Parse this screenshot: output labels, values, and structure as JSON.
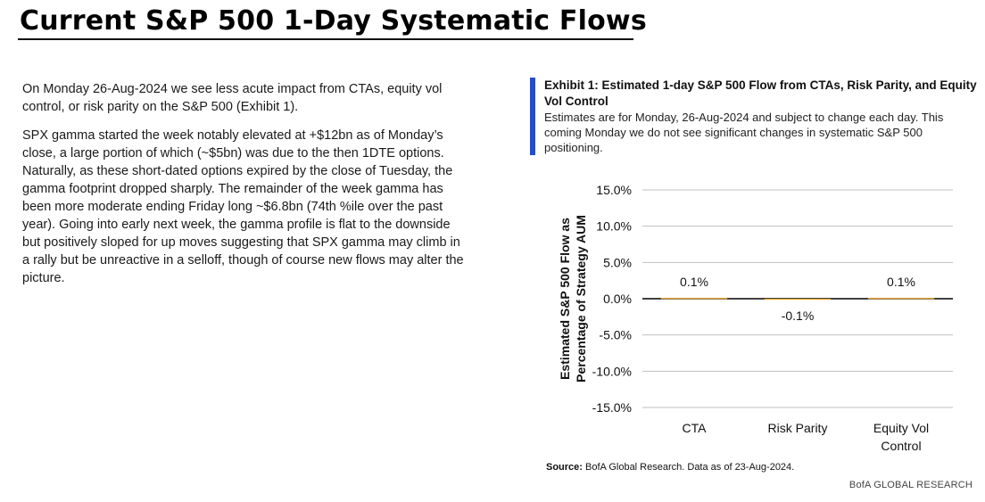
{
  "page": {
    "title": "Current S&P 500 1-Day Systematic Flows",
    "paragraphs": [
      "On Monday 26-Aug-2024 we see less acute impact from CTAs, equity vol control, or risk parity on the S&P 500 (Exhibit 1).",
      "SPX gamma started the week notably elevated at +$12bn as of Monday’s close, a large portion of which (~$5bn) was due to the then 1DTE options.  Naturally, as these short-dated options expired by the close of Tuesday, the gamma footprint dropped sharply.  The remainder of the week gamma has been more moderate ending Friday long ~$6.8bn (74th %ile over the past year).  Going into early next week, the gamma profile is flat to the downside but positively sloped for up moves suggesting that SPX gamma may climb in a rally but be unreactive in a selloff, though of course new flows may alter the picture."
    ]
  },
  "exhibit": {
    "title": "Exhibit 1: Estimated 1-day S&P 500 Flow from CTAs, Risk Parity, and Equity Vol Control",
    "subtitle": "Estimates are for Monday, 26-Aug-2024 and subject to change each day. This coming Monday we do not see significant changes in systematic S&P 500 positioning.",
    "source_label": "Source:",
    "source_text": "BofA Global Research.  Data as of 23-Aug-2024.",
    "brand": "BofA GLOBAL RESEARCH"
  },
  "chart_data": {
    "type": "bar",
    "categories": [
      "CTA",
      "Risk Parity",
      "Equity Vol Control"
    ],
    "values": [
      0.1,
      -0.1,
      0.1
    ],
    "data_labels": [
      "0.1%",
      "-0.1%",
      "0.1%"
    ],
    "ylabel": "Estimated S&P 500 Flow as Percentage of Strategy AUM",
    "ylim": [
      -15,
      15
    ],
    "yticks": [
      15,
      10,
      5,
      0,
      -5,
      -10,
      -15
    ],
    "ytick_labels": [
      "15.0%",
      "10.0%",
      "5.0%",
      "0.0%",
      "-5.0%",
      "-10.0%",
      "-15.0%"
    ],
    "grid": true,
    "bar_color": "#f5a623",
    "axis_color": "#000000",
    "grid_color": "#bfbfbf"
  }
}
